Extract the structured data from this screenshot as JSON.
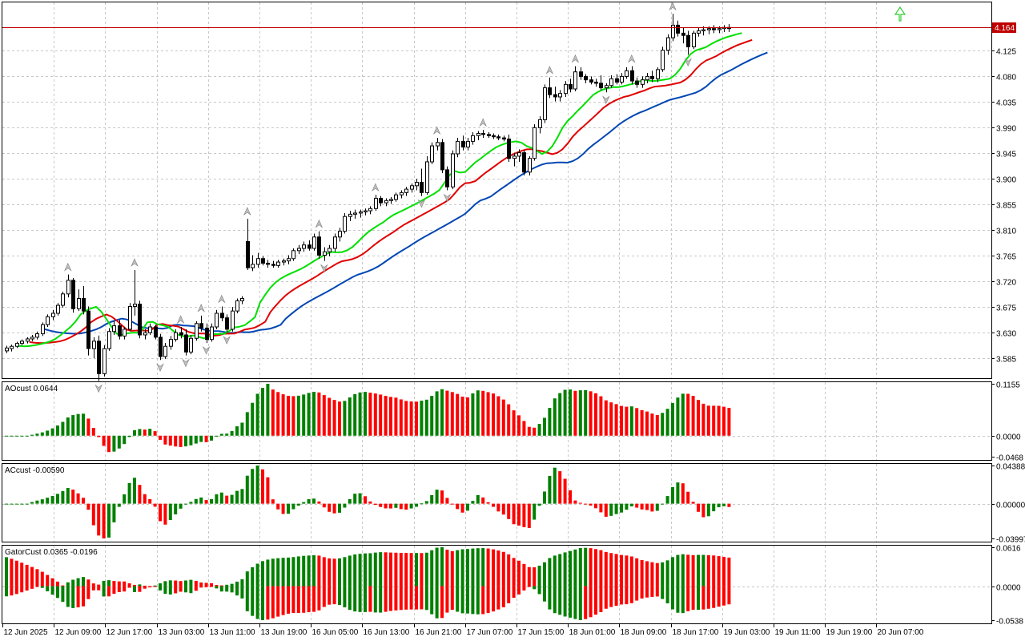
{
  "price_marker": "4.164",
  "chart_data": [
    {
      "type": "candlestick",
      "pane": "main",
      "ylim": [
        3.55,
        4.21
      ],
      "yticks": [
        "4.125",
        "4.080",
        "4.035",
        "3.990",
        "3.945",
        "3.900",
        "3.855",
        "3.810",
        "3.765",
        "3.720",
        "3.675",
        "3.630",
        "3.585"
      ],
      "current_price": 4.164,
      "candles_ohlc": [
        [
          3.598,
          3.607,
          3.594,
          3.603
        ],
        [
          3.602,
          3.609,
          3.597,
          3.606
        ],
        [
          3.606,
          3.614,
          3.603,
          3.611
        ],
        [
          3.611,
          3.618,
          3.608,
          3.615
        ],
        [
          3.615,
          3.622,
          3.611,
          3.619
        ],
        [
          3.619,
          3.626,
          3.615,
          3.622
        ],
        [
          3.622,
          3.632,
          3.618,
          3.628
        ],
        [
          3.628,
          3.648,
          3.624,
          3.644
        ],
        [
          3.644,
          3.662,
          3.64,
          3.658
        ],
        [
          3.658,
          3.67,
          3.652,
          3.664
        ],
        [
          3.664,
          3.682,
          3.66,
          3.678
        ],
        [
          3.678,
          3.702,
          3.674,
          3.698
        ],
        [
          3.698,
          3.732,
          3.692,
          3.722
        ],
        [
          3.722,
          3.726,
          3.665,
          3.672
        ],
        [
          3.672,
          3.706,
          3.668,
          3.69
        ],
        [
          3.69,
          3.712,
          3.662,
          3.668
        ],
        [
          3.668,
          3.676,
          3.59,
          3.602
        ],
        [
          3.602,
          3.622,
          3.585,
          3.615
        ],
        [
          3.615,
          3.625,
          3.545,
          3.558
        ],
        [
          3.558,
          3.608,
          3.553,
          3.602
        ],
        [
          3.602,
          3.638,
          3.598,
          3.632
        ],
        [
          3.632,
          3.65,
          3.626,
          3.642
        ],
        [
          3.642,
          3.652,
          3.618,
          3.624
        ],
        [
          3.624,
          3.64,
          3.618,
          3.636
        ],
        [
          3.636,
          3.682,
          3.632,
          3.676
        ],
        [
          3.676,
          3.74,
          3.66,
          3.68
        ],
        [
          3.68,
          3.686,
          3.62,
          3.626
        ],
        [
          3.626,
          3.636,
          3.618,
          3.63
        ],
        [
          3.63,
          3.646,
          3.626,
          3.64
        ],
        [
          3.64,
          3.644,
          3.618,
          3.622
        ],
        [
          3.622,
          3.628,
          3.582,
          3.588
        ],
        [
          3.588,
          3.612,
          3.584,
          3.606
        ],
        [
          3.606,
          3.624,
          3.6,
          3.618
        ],
        [
          3.618,
          3.636,
          3.614,
          3.63
        ],
        [
          3.63,
          3.64,
          3.62,
          3.626
        ],
        [
          3.626,
          3.636,
          3.59,
          3.596
        ],
        [
          3.596,
          3.626,
          3.592,
          3.62
        ],
        [
          3.62,
          3.65,
          3.616,
          3.646
        ],
        [
          3.646,
          3.66,
          3.632,
          3.638
        ],
        [
          3.638,
          3.646,
          3.612,
          3.618
        ],
        [
          3.618,
          3.646,
          3.614,
          3.64
        ],
        [
          3.64,
          3.67,
          3.636,
          3.664
        ],
        [
          3.664,
          3.676,
          3.65,
          3.656
        ],
        [
          3.656,
          3.662,
          3.63,
          3.636
        ],
        [
          3.636,
          3.675,
          3.632,
          3.668
        ],
        [
          3.668,
          3.69,
          3.664,
          3.686
        ],
        [
          3.686,
          3.694,
          3.68,
          3.69
        ],
        [
          3.79,
          3.83,
          3.74,
          3.744
        ],
        [
          3.744,
          3.766,
          3.738,
          3.75
        ],
        [
          3.75,
          3.77,
          3.744,
          3.76
        ],
        [
          3.76,
          3.764,
          3.748,
          3.752
        ],
        [
          3.752,
          3.758,
          3.744,
          3.75
        ],
        [
          3.75,
          3.756,
          3.744,
          3.748
        ],
        [
          3.748,
          3.758,
          3.744,
          3.754
        ],
        [
          3.754,
          3.76,
          3.748,
          3.756
        ],
        [
          3.756,
          3.766,
          3.75,
          3.76
        ],
        [
          3.76,
          3.778,
          3.756,
          3.774
        ],
        [
          3.774,
          3.784,
          3.768,
          3.778
        ],
        [
          3.778,
          3.79,
          3.772,
          3.784
        ],
        [
          3.784,
          3.792,
          3.774,
          3.778
        ],
        [
          3.778,
          3.804,
          3.774,
          3.798
        ],
        [
          3.798,
          3.808,
          3.76,
          3.766
        ],
        [
          3.766,
          3.78,
          3.756,
          3.772
        ],
        [
          3.772,
          3.784,
          3.764,
          3.778
        ],
        [
          3.778,
          3.804,
          3.772,
          3.798
        ],
        [
          3.798,
          3.814,
          3.79,
          3.808
        ],
        [
          3.808,
          3.84,
          3.804,
          3.834
        ],
        [
          3.834,
          3.844,
          3.826,
          3.838
        ],
        [
          3.838,
          3.846,
          3.83,
          3.84
        ],
        [
          3.84,
          3.846,
          3.832,
          3.842
        ],
        [
          3.842,
          3.848,
          3.836,
          3.844
        ],
        [
          3.844,
          3.852,
          3.838,
          3.848
        ],
        [
          3.848,
          3.872,
          3.844,
          3.866
        ],
        [
          3.866,
          3.87,
          3.852,
          3.858
        ],
        [
          3.858,
          3.866,
          3.852,
          3.862
        ],
        [
          3.862,
          3.868,
          3.856,
          3.864
        ],
        [
          3.864,
          3.876,
          3.86,
          3.872
        ],
        [
          3.872,
          3.88,
          3.866,
          3.876
        ],
        [
          3.876,
          3.886,
          3.87,
          3.882
        ],
        [
          3.882,
          3.892,
          3.876,
          3.888
        ],
        [
          3.888,
          3.9,
          3.88,
          3.894
        ],
        [
          3.894,
          3.918,
          3.87,
          3.876
        ],
        [
          3.876,
          3.94,
          3.872,
          3.93
        ],
        [
          3.93,
          3.964,
          3.926,
          3.958
        ],
        [
          3.958,
          3.972,
          3.95,
          3.964
        ],
        [
          3.964,
          3.97,
          3.91,
          3.916
        ],
        [
          3.916,
          3.922,
          3.88,
          3.886
        ],
        [
          3.886,
          3.95,
          3.882,
          3.944
        ],
        [
          3.944,
          3.972,
          3.938,
          3.966
        ],
        [
          3.966,
          3.976,
          3.95,
          3.956
        ],
        [
          3.956,
          3.972,
          3.95,
          3.966
        ],
        [
          3.966,
          3.982,
          3.96,
          3.976
        ],
        [
          3.976,
          3.984,
          3.968,
          3.98
        ],
        [
          3.98,
          3.986,
          3.972,
          3.978
        ],
        [
          3.978,
          3.982,
          3.972,
          3.976
        ],
        [
          3.976,
          3.98,
          3.97,
          3.974
        ],
        [
          3.974,
          3.978,
          3.968,
          3.972
        ],
        [
          3.972,
          3.976,
          3.966,
          3.97
        ],
        [
          3.97,
          3.978,
          3.93,
          3.936
        ],
        [
          3.936,
          3.946,
          3.922,
          3.94
        ],
        [
          3.94,
          3.952,
          3.93,
          3.946
        ],
        [
          3.946,
          3.95,
          3.906,
          3.912
        ],
        [
          3.912,
          3.94,
          3.906,
          3.936
        ],
        [
          3.936,
          3.996,
          3.932,
          3.99
        ],
        [
          3.99,
          4.01,
          3.98,
          4.004
        ],
        [
          4.004,
          4.066,
          3.998,
          4.06
        ],
        [
          4.06,
          4.078,
          4.042,
          4.048
        ],
        [
          4.048,
          4.062,
          4.036,
          4.044
        ],
        [
          4.044,
          4.056,
          4.036,
          4.05
        ],
        [
          4.05,
          4.072,
          4.044,
          4.066
        ],
        [
          4.066,
          4.076,
          4.052,
          4.058
        ],
        [
          4.058,
          4.098,
          4.054,
          4.088
        ],
        [
          4.088,
          4.096,
          4.074,
          4.08
        ],
        [
          4.08,
          4.084,
          4.068,
          4.074
        ],
        [
          4.074,
          4.08,
          4.066,
          4.07
        ],
        [
          4.07,
          4.076,
          4.062,
          4.068
        ],
        [
          4.068,
          4.082,
          4.056,
          4.06
        ],
        [
          4.06,
          4.068,
          4.052,
          4.064
        ],
        [
          4.064,
          4.082,
          4.06,
          4.076
        ],
        [
          4.076,
          4.084,
          4.066,
          4.07
        ],
        [
          4.07,
          4.086,
          4.066,
          4.08
        ],
        [
          4.08,
          4.096,
          4.076,
          4.09
        ],
        [
          4.09,
          4.098,
          4.066,
          4.072
        ],
        [
          4.072,
          4.078,
          4.06,
          4.066
        ],
        [
          4.066,
          4.08,
          4.06,
          4.074
        ],
        [
          4.074,
          4.086,
          4.068,
          4.08
        ],
        [
          4.08,
          4.09,
          4.07,
          4.076
        ],
        [
          4.076,
          4.096,
          4.07,
          4.092
        ],
        [
          4.092,
          4.132,
          4.088,
          4.126
        ],
        [
          4.126,
          4.154,
          4.118,
          4.148
        ],
        [
          4.148,
          4.19,
          4.142,
          4.17
        ],
        [
          4.17,
          4.178,
          4.15,
          4.156
        ],
        [
          4.156,
          4.166,
          4.138,
          4.152
        ],
        [
          4.152,
          4.16,
          4.118,
          4.132
        ],
        [
          4.132,
          4.16,
          4.128,
          4.156
        ],
        [
          4.156,
          4.166,
          4.15,
          4.16
        ],
        [
          4.16,
          4.168,
          4.152,
          4.162
        ],
        [
          4.162,
          4.168,
          4.154,
          4.164
        ],
        [
          4.164,
          4.17,
          4.156,
          4.162
        ],
        [
          4.162,
          4.168,
          4.156,
          4.164
        ],
        [
          4.164,
          4.17,
          4.158,
          4.166
        ],
        [
          4.166,
          4.172,
          4.158,
          4.164
        ]
      ]
    },
    {
      "type": "bar",
      "pane": "AO",
      "label": "AOcust 0.0644",
      "ylim": [
        -0.0468,
        0.1155
      ],
      "yticks": [
        "0.1155",
        "0.0000",
        "-0.0468"
      ]
    },
    {
      "type": "bar",
      "pane": "AC",
      "label": "ACcust -0.00590",
      "ylim": [
        -0.03997,
        0.04388
      ],
      "yticks": [
        "0.04388",
        "0.00000",
        "-0.03997"
      ]
    },
    {
      "type": "bar",
      "pane": "Gator",
      "label": "GatorCust 0.0365 -0.0196",
      "ylim": [
        -0.0538,
        0.0616
      ],
      "yticks": [
        "0.0616",
        "0.0000",
        "-0.0538"
      ]
    },
    {
      "type": "time-axis",
      "xticks": [
        "12 Jun 2025",
        "12 Jun 09:00",
        "12 Jun 17:00",
        "13 Jun 03:00",
        "13 Jun 11:00",
        "13 Jun 19:00",
        "16 Jun 05:00",
        "16 Jun 13:00",
        "16 Jun 21:00",
        "17 Jun 07:00",
        "17 Jun 15:00",
        "18 Jun 01:00",
        "18 Jun 09:00",
        "18 Jun 17:00",
        "19 Jun 03:00",
        "19 Jun 11:00",
        "19 Jun 19:00",
        "20 Jun 07:00"
      ]
    }
  ],
  "colors": {
    "up": "#008000",
    "down": "#ff0000",
    "jaw": "#0047b3",
    "teeth": "#e00000",
    "lips": "#00e000",
    "price_line": "#c00000",
    "price_tag": "#c00000",
    "grid": "#c8c8c8"
  }
}
